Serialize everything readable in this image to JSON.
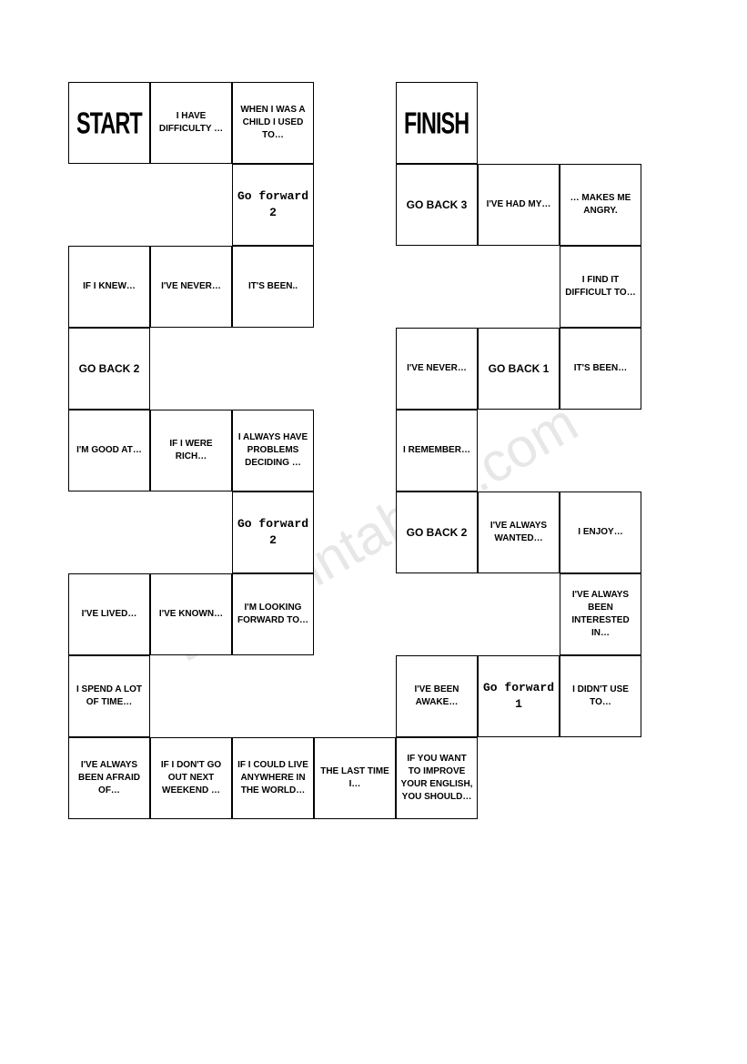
{
  "watermark": "ESLprintables.com",
  "cell_size": 90,
  "colors": {
    "background": "#ffffff",
    "border": "#000000",
    "text": "#000000",
    "watermark": "#d0d0d0"
  },
  "cells": [
    {
      "row": 0,
      "col": 0,
      "text": "START",
      "type": "start"
    },
    {
      "row": 0,
      "col": 1,
      "text": "I HAVE DIFFICULTY …",
      "type": "prompt"
    },
    {
      "row": 0,
      "col": 2,
      "text": "WHEN I WAS A CHILD I USED TO…",
      "type": "prompt"
    },
    {
      "row": 0,
      "col": 4,
      "text": "FINISH",
      "type": "finish"
    },
    {
      "row": 1,
      "col": 2,
      "text": "Go forward 2",
      "type": "action"
    },
    {
      "row": 1,
      "col": 4,
      "text": "GO BACK 3",
      "type": "action2"
    },
    {
      "row": 1,
      "col": 5,
      "text": "I'VE HAD MY…",
      "type": "prompt"
    },
    {
      "row": 1,
      "col": 6,
      "text": "… MAKES ME ANGRY.",
      "type": "prompt"
    },
    {
      "row": 2,
      "col": 0,
      "text": "IF I KNEW…",
      "type": "prompt"
    },
    {
      "row": 2,
      "col": 1,
      "text": "I'VE NEVER…",
      "type": "prompt"
    },
    {
      "row": 2,
      "col": 2,
      "text": "IT'S BEEN..",
      "type": "prompt"
    },
    {
      "row": 2,
      "col": 6,
      "text": "I FIND IT DIFFICULT TO…",
      "type": "prompt"
    },
    {
      "row": 3,
      "col": 0,
      "text": "GO BACK 2",
      "type": "action2"
    },
    {
      "row": 3,
      "col": 4,
      "text": "I'VE NEVER…",
      "type": "prompt"
    },
    {
      "row": 3,
      "col": 5,
      "text": "GO BACK 1",
      "type": "action2"
    },
    {
      "row": 3,
      "col": 6,
      "text": "IT'S BEEN…",
      "type": "prompt"
    },
    {
      "row": 4,
      "col": 0,
      "text": "I'M GOOD AT…",
      "type": "prompt"
    },
    {
      "row": 4,
      "col": 1,
      "text": "IF I WERE RICH…",
      "type": "prompt"
    },
    {
      "row": 4,
      "col": 2,
      "text": "I ALWAYS HAVE PROBLEMS DECIDING …",
      "type": "prompt"
    },
    {
      "row": 4,
      "col": 4,
      "text": "I REMEMBER…",
      "type": "prompt"
    },
    {
      "row": 5,
      "col": 2,
      "text": "Go forward 2",
      "type": "action"
    },
    {
      "row": 5,
      "col": 4,
      "text": "GO BACK 2",
      "type": "action2"
    },
    {
      "row": 5,
      "col": 5,
      "text": "I'VE ALWAYS WANTED…",
      "type": "prompt"
    },
    {
      "row": 5,
      "col": 6,
      "text": "I ENJOY…",
      "type": "prompt"
    },
    {
      "row": 6,
      "col": 0,
      "text": "I'VE LIVED…",
      "type": "prompt"
    },
    {
      "row": 6,
      "col": 1,
      "text": "I'VE KNOWN…",
      "type": "prompt"
    },
    {
      "row": 6,
      "col": 2,
      "text": "I'M LOOKING FORWARD TO…",
      "type": "prompt"
    },
    {
      "row": 6,
      "col": 6,
      "text": "I'VE ALWAYS BEEN INTERESTED IN…",
      "type": "prompt"
    },
    {
      "row": 7,
      "col": 0,
      "text": "I SPEND A LOT OF TIME…",
      "type": "prompt"
    },
    {
      "row": 7,
      "col": 4,
      "text": "I'VE BEEN AWAKE…",
      "type": "prompt"
    },
    {
      "row": 7,
      "col": 5,
      "text": "Go forward 1",
      "type": "action"
    },
    {
      "row": 7,
      "col": 6,
      "text": "I DIDN'T USE TO…",
      "type": "prompt"
    },
    {
      "row": 8,
      "col": 0,
      "text": "I'VE ALWAYS BEEN AFRAID OF…",
      "type": "prompt"
    },
    {
      "row": 8,
      "col": 1,
      "text": "IF I DON'T GO OUT NEXT WEEKEND …",
      "type": "prompt"
    },
    {
      "row": 8,
      "col": 2,
      "text": "IF I COULD LIVE ANYWHERE IN THE WORLD…",
      "type": "prompt"
    },
    {
      "row": 8,
      "col": 3,
      "text": "THE LAST TIME I…",
      "type": "prompt"
    },
    {
      "row": 8,
      "col": 4,
      "text": "IF YOU WANT TO IMPROVE YOUR ENGLISH, YOU SHOULD…",
      "type": "prompt"
    }
  ]
}
